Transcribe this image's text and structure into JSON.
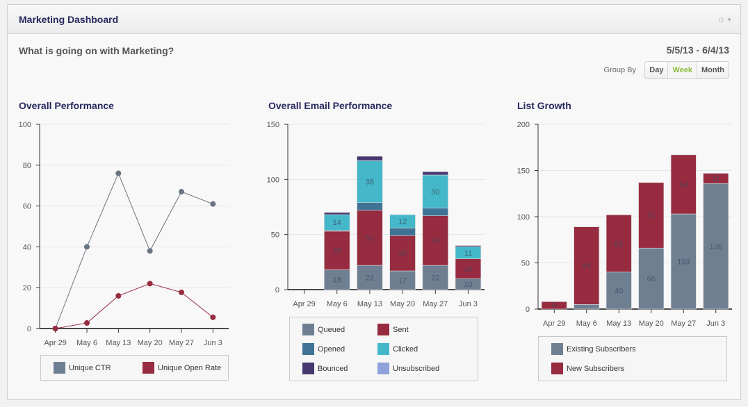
{
  "header": {
    "title": "Marketing Dashboard",
    "settings_icon": "gear-icon"
  },
  "subtitle": "What is going on with Marketing?",
  "date_range": "5/5/13 - 6/4/13",
  "group_by": {
    "label": "Group By",
    "options": [
      "Day",
      "Week",
      "Month"
    ],
    "selected": "Week"
  },
  "colors": {
    "queued": "#6e7f92",
    "sent": "#972b40",
    "opened": "#3e7395",
    "clicked": "#44b7c9",
    "bounced": "#47386f",
    "unsubscribed": "#8fa2d9",
    "ctr": "#6a7380",
    "open_rate": "#972b40",
    "existing": "#6e7f92",
    "new": "#972b40"
  },
  "chart_data": [
    {
      "type": "line",
      "title": "Overall Performance",
      "categories": [
        "Apr 29",
        "May 6",
        "May 13",
        "May 20",
        "May 27",
        "Jun 3"
      ],
      "ylim": [
        0,
        100
      ],
      "yticks": [
        0,
        20,
        40,
        60,
        80,
        100
      ],
      "grid": true,
      "legend_position": "bottom",
      "series": [
        {
          "name": "Unique CTR",
          "legend_color": "#6e7f92",
          "color": "#6a7380",
          "values": [
            0,
            40,
            76,
            38,
            67,
            61
          ]
        },
        {
          "name": "Unique Open Rate",
          "legend_color": "#972b40",
          "color": "#972b40",
          "values": [
            0,
            2.7,
            16,
            22,
            17.7,
            5.5
          ]
        }
      ]
    },
    {
      "type": "bar",
      "stacked": true,
      "title": "Overall Email Performance",
      "categories": [
        "Apr 29",
        "May 6",
        "May 13",
        "May 20",
        "May 27",
        "Jun 3"
      ],
      "ylim": [
        0,
        150
      ],
      "yticks": [
        0,
        50,
        100,
        150
      ],
      "grid": true,
      "legend_position": "bottom",
      "series": [
        {
          "name": "Queued",
          "color": "#6e7f92",
          "values": [
            0,
            18,
            22,
            17,
            22,
            10
          ]
        },
        {
          "name": "Sent",
          "color": "#972b40",
          "values": [
            0,
            35,
            50,
            32,
            45,
            18
          ]
        },
        {
          "name": "Opened",
          "color": "#3e7395",
          "values": [
            0,
            1,
            7,
            7,
            7,
            0
          ]
        },
        {
          "name": "Clicked",
          "color": "#44b7c9",
          "values": [
            0,
            14,
            38,
            12,
            30,
            11
          ]
        },
        {
          "name": "Bounced",
          "color": "#47386f",
          "values": [
            0,
            2,
            4,
            0,
            3,
            1
          ]
        },
        {
          "name": "Unsubscribed",
          "color": "#8fa2d9",
          "values": [
            0,
            0,
            0,
            0,
            0,
            0
          ]
        }
      ],
      "label_series": [
        "Queued",
        "Sent",
        "Clicked"
      ]
    },
    {
      "type": "bar",
      "stacked": true,
      "title": "List Growth",
      "categories": [
        "Apr 29",
        "May 6",
        "May 13",
        "May 20",
        "May 27",
        "Jun 3"
      ],
      "ylim": [
        0,
        200
      ],
      "yticks": [
        0,
        50,
        100,
        150,
        200
      ],
      "grid": true,
      "legend_position": "bottom",
      "series": [
        {
          "name": "Existing Subscribers",
          "color": "#6e7f92",
          "values": [
            0,
            5,
            40,
            66,
            103,
            136
          ]
        },
        {
          "name": "New Subscribers",
          "color": "#972b40",
          "values": [
            8,
            84,
            62,
            71,
            64,
            11
          ]
        }
      ],
      "label_series": [
        "Existing Subscribers",
        "New Subscribers"
      ]
    }
  ]
}
